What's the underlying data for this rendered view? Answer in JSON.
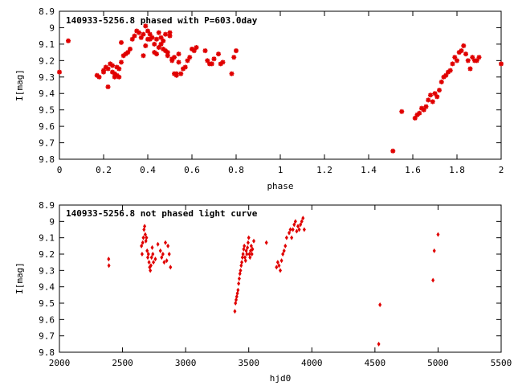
{
  "chart_data": [
    {
      "type": "scatter",
      "title": "140933-5256.8 phased with P=603.0day",
      "xlabel": "phase",
      "ylabel": "I[mag]",
      "xlim": [
        0,
        2
      ],
      "ylim": [
        9.8,
        8.9
      ],
      "y_inverted": true,
      "grid": false,
      "xticks": [
        "0",
        "0.2",
        "0.4",
        "0.6",
        "0.8",
        "1",
        "1.2",
        "1.4",
        "1.6",
        "1.8",
        "2"
      ],
      "yticks": [
        "8.9",
        "9",
        "9.1",
        "9.2",
        "9.3",
        "9.4",
        "9.5",
        "9.6",
        "9.7",
        "9.8"
      ],
      "marker": "star",
      "color": "#e00000",
      "x": [
        0.0,
        0.04,
        0.17,
        0.18,
        0.2,
        0.2,
        0.21,
        0.22,
        0.22,
        0.23,
        0.24,
        0.24,
        0.25,
        0.25,
        0.26,
        0.26,
        0.27,
        0.27,
        0.28,
        0.28,
        0.29,
        0.3,
        0.31,
        0.32,
        0.33,
        0.34,
        0.35,
        0.36,
        0.37,
        0.38,
        0.38,
        0.39,
        0.39,
        0.4,
        0.4,
        0.41,
        0.41,
        0.42,
        0.43,
        0.43,
        0.44,
        0.44,
        0.45,
        0.45,
        0.46,
        0.46,
        0.47,
        0.47,
        0.48,
        0.48,
        0.49,
        0.49,
        0.5,
        0.5,
        0.51,
        0.51,
        0.52,
        0.52,
        0.53,
        0.53,
        0.54,
        0.54,
        0.55,
        0.56,
        0.57,
        0.58,
        0.59,
        0.6,
        0.61,
        0.62,
        0.66,
        0.67,
        0.68,
        0.69,
        0.7,
        0.72,
        0.73,
        0.74,
        0.78,
        0.79,
        0.8,
        1.51,
        1.55,
        1.61,
        1.62,
        1.63,
        1.64,
        1.65,
        1.66,
        1.67,
        1.68,
        1.69,
        1.7,
        1.71,
        1.72,
        1.73,
        1.74,
        1.75,
        1.76,
        1.77,
        1.78,
        1.79,
        1.8,
        1.81,
        1.82,
        1.83,
        1.84,
        1.85,
        1.86,
        1.87,
        1.88,
        1.89,
        1.9,
        2.0
      ],
      "y": [
        9.27,
        9.08,
        9.29,
        9.3,
        9.27,
        9.26,
        9.24,
        9.25,
        9.36,
        9.22,
        9.23,
        9.27,
        9.28,
        9.3,
        9.24,
        9.29,
        9.25,
        9.3,
        9.21,
        9.09,
        9.17,
        9.16,
        9.15,
        9.13,
        9.07,
        9.05,
        9.02,
        9.03,
        9.06,
        9.04,
        9.17,
        9.11,
        8.99,
        9.07,
        9.02,
        9.04,
        9.07,
        9.06,
        9.15,
        9.1,
        9.07,
        9.16,
        9.12,
        9.03,
        9.1,
        9.06,
        9.08,
        9.13,
        9.14,
        9.04,
        9.15,
        9.17,
        9.05,
        9.03,
        9.19,
        9.2,
        9.28,
        9.18,
        9.28,
        9.29,
        9.21,
        9.16,
        9.28,
        9.25,
        9.24,
        9.2,
        9.18,
        9.13,
        9.14,
        9.12,
        9.14,
        9.2,
        9.22,
        9.22,
        9.19,
        9.16,
        9.22,
        9.21,
        9.28,
        9.18,
        9.14,
        9.75,
        9.51,
        9.55,
        9.53,
        9.52,
        9.49,
        9.5,
        9.48,
        9.44,
        9.41,
        9.45,
        9.4,
        9.42,
        9.38,
        9.33,
        9.3,
        9.29,
        9.27,
        9.26,
        9.22,
        9.18,
        9.2,
        9.15,
        9.14,
        9.11,
        9.16,
        9.2,
        9.25,
        9.18,
        9.2,
        9.2,
        9.18,
        9.22
      ],
      "point_count": 112
    },
    {
      "type": "scatter",
      "title": "140933-5256.8 not phased light curve",
      "xlabel": "hjd0",
      "ylabel": "I[mag]",
      "xlim": [
        2000,
        5500
      ],
      "ylim": [
        9.8,
        8.9
      ],
      "y_inverted": true,
      "grid": false,
      "xticks": [
        "2000",
        "2500",
        "3000",
        "3500",
        "4000",
        "4500",
        "5000",
        "5500"
      ],
      "yticks": [
        "8.9",
        "9",
        "9.1",
        "9.2",
        "9.3",
        "9.4",
        "9.5",
        "9.6",
        "9.7",
        "9.8"
      ],
      "marker": "diamond",
      "color": "#e00000",
      "x": [
        2390,
        2392,
        2650,
        2655,
        2660,
        2665,
        2670,
        2675,
        2680,
        2685,
        2690,
        2695,
        2700,
        2705,
        2710,
        2715,
        2720,
        2725,
        2730,
        2735,
        2740,
        2745,
        2760,
        2780,
        2800,
        2810,
        2820,
        2830,
        2840,
        2850,
        2860,
        2870,
        2880,
        3390,
        3395,
        3400,
        3405,
        3410,
        3415,
        3420,
        3425,
        3430,
        3435,
        3440,
        3445,
        3450,
        3455,
        3460,
        3465,
        3470,
        3475,
        3480,
        3485,
        3490,
        3495,
        3500,
        3505,
        3510,
        3515,
        3520,
        3525,
        3530,
        3540,
        3640,
        3720,
        3730,
        3740,
        3750,
        3760,
        3770,
        3780,
        3790,
        3800,
        3820,
        3830,
        3840,
        3850,
        3860,
        3870,
        3880,
        3890,
        3900,
        3910,
        3920,
        3930,
        3940,
        4530,
        4540,
        4960,
        4970,
        5000
      ],
      "y": [
        9.23,
        9.27,
        9.15,
        9.2,
        9.13,
        9.1,
        9.05,
        9.03,
        9.08,
        9.12,
        9.1,
        9.18,
        9.22,
        9.2,
        9.25,
        9.28,
        9.3,
        9.27,
        9.22,
        9.16,
        9.2,
        9.25,
        9.23,
        9.14,
        9.18,
        9.22,
        9.2,
        9.25,
        9.13,
        9.24,
        9.15,
        9.2,
        9.28,
        9.55,
        9.5,
        9.48,
        9.46,
        9.44,
        9.42,
        9.38,
        9.35,
        9.32,
        9.3,
        9.27,
        9.25,
        9.22,
        9.2,
        9.17,
        9.15,
        9.22,
        9.24,
        9.18,
        9.2,
        9.16,
        9.13,
        9.1,
        9.2,
        9.22,
        9.18,
        9.15,
        9.2,
        9.17,
        9.12,
        9.13,
        9.28,
        9.25,
        9.27,
        9.3,
        9.24,
        9.2,
        9.18,
        9.15,
        9.1,
        9.07,
        9.05,
        9.1,
        9.05,
        9.02,
        9.0,
        9.06,
        9.03,
        9.05,
        9.02,
        9.0,
        8.98,
        9.05,
        9.75,
        9.51,
        9.36,
        9.18,
        9.08
      ],
      "point_count": 91
    }
  ]
}
